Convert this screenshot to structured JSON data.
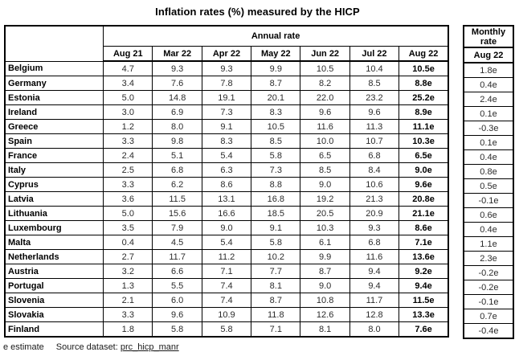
{
  "title": "Inflation rates (%) measured by the HICP",
  "colors": {
    "text": "#000000",
    "border": "#000000",
    "background": "#ffffff"
  },
  "table": {
    "group_header": "Annual rate",
    "columns": [
      "Aug 21",
      "Mar 22",
      "Apr 22",
      "May 22",
      "Jun 22",
      "Jul 22",
      "Aug 22"
    ],
    "rows": [
      {
        "country": "Belgium",
        "values": [
          "4.7",
          "9.3",
          "9.3",
          "9.9",
          "10.5",
          "10.4",
          "10.5e"
        ],
        "monthly": "1.8e"
      },
      {
        "country": "Germany",
        "values": [
          "3.4",
          "7.6",
          "7.8",
          "8.7",
          "8.2",
          "8.5",
          "8.8e"
        ],
        "monthly": "0.4e"
      },
      {
        "country": "Estonia",
        "values": [
          "5.0",
          "14.8",
          "19.1",
          "20.1",
          "22.0",
          "23.2",
          "25.2e"
        ],
        "monthly": "2.4e"
      },
      {
        "country": "Ireland",
        "values": [
          "3.0",
          "6.9",
          "7.3",
          "8.3",
          "9.6",
          "9.6",
          "8.9e"
        ],
        "monthly": "0.1e"
      },
      {
        "country": "Greece",
        "values": [
          "1.2",
          "8.0",
          "9.1",
          "10.5",
          "11.6",
          "11.3",
          "11.1e"
        ],
        "monthly": "-0.3e"
      },
      {
        "country": "Spain",
        "values": [
          "3.3",
          "9.8",
          "8.3",
          "8.5",
          "10.0",
          "10.7",
          "10.3e"
        ],
        "monthly": "0.1e"
      },
      {
        "country": "France",
        "values": [
          "2.4",
          "5.1",
          "5.4",
          "5.8",
          "6.5",
          "6.8",
          "6.5e"
        ],
        "monthly": "0.4e"
      },
      {
        "country": "Italy",
        "values": [
          "2.5",
          "6.8",
          "6.3",
          "7.3",
          "8.5",
          "8.4",
          "9.0e"
        ],
        "monthly": "0.8e"
      },
      {
        "country": "Cyprus",
        "values": [
          "3.3",
          "6.2",
          "8.6",
          "8.8",
          "9.0",
          "10.6",
          "9.6e"
        ],
        "monthly": "0.5e"
      },
      {
        "country": "Latvia",
        "values": [
          "3.6",
          "11.5",
          "13.1",
          "16.8",
          "19.2",
          "21.3",
          "20.8e"
        ],
        "monthly": "-0.1e"
      },
      {
        "country": "Lithuania",
        "values": [
          "5.0",
          "15.6",
          "16.6",
          "18.5",
          "20.5",
          "20.9",
          "21.1e"
        ],
        "monthly": "0.6e"
      },
      {
        "country": "Luxembourg",
        "values": [
          "3.5",
          "7.9",
          "9.0",
          "9.1",
          "10.3",
          "9.3",
          "8.6e"
        ],
        "monthly": "0.4e"
      },
      {
        "country": "Malta",
        "values": [
          "0.4",
          "4.5",
          "5.4",
          "5.8",
          "6.1",
          "6.8",
          "7.1e"
        ],
        "monthly": "1.1e"
      },
      {
        "country": "Netherlands",
        "values": [
          "2.7",
          "11.7",
          "11.2",
          "10.2",
          "9.9",
          "11.6",
          "13.6e"
        ],
        "monthly": "2.3e"
      },
      {
        "country": "Austria",
        "values": [
          "3.2",
          "6.6",
          "7.1",
          "7.7",
          "8.7",
          "9.4",
          "9.2e"
        ],
        "monthly": "-0.2e"
      },
      {
        "country": "Portugal",
        "values": [
          "1.3",
          "5.5",
          "7.4",
          "8.1",
          "9.0",
          "9.4",
          "9.4e"
        ],
        "monthly": "-0.2e"
      },
      {
        "country": "Slovenia",
        "values": [
          "2.1",
          "6.0",
          "7.4",
          "8.7",
          "10.8",
          "11.7",
          "11.5e"
        ],
        "monthly": "-0.1e"
      },
      {
        "country": "Slovakia",
        "values": [
          "3.3",
          "9.6",
          "10.9",
          "11.8",
          "12.6",
          "12.8",
          "13.3e"
        ],
        "monthly": "0.7e"
      },
      {
        "country": "Finland",
        "values": [
          "1.8",
          "5.8",
          "5.8",
          "7.1",
          "8.1",
          "8.0",
          "7.6e"
        ],
        "monthly": "-0.4e"
      }
    ]
  },
  "monthly_table": {
    "group_header": "Monthly rate",
    "column": "Aug 22"
  },
  "footer": {
    "note": "e estimate",
    "source_label": "Source dataset:",
    "source_link": "prc_hicp_manr"
  }
}
